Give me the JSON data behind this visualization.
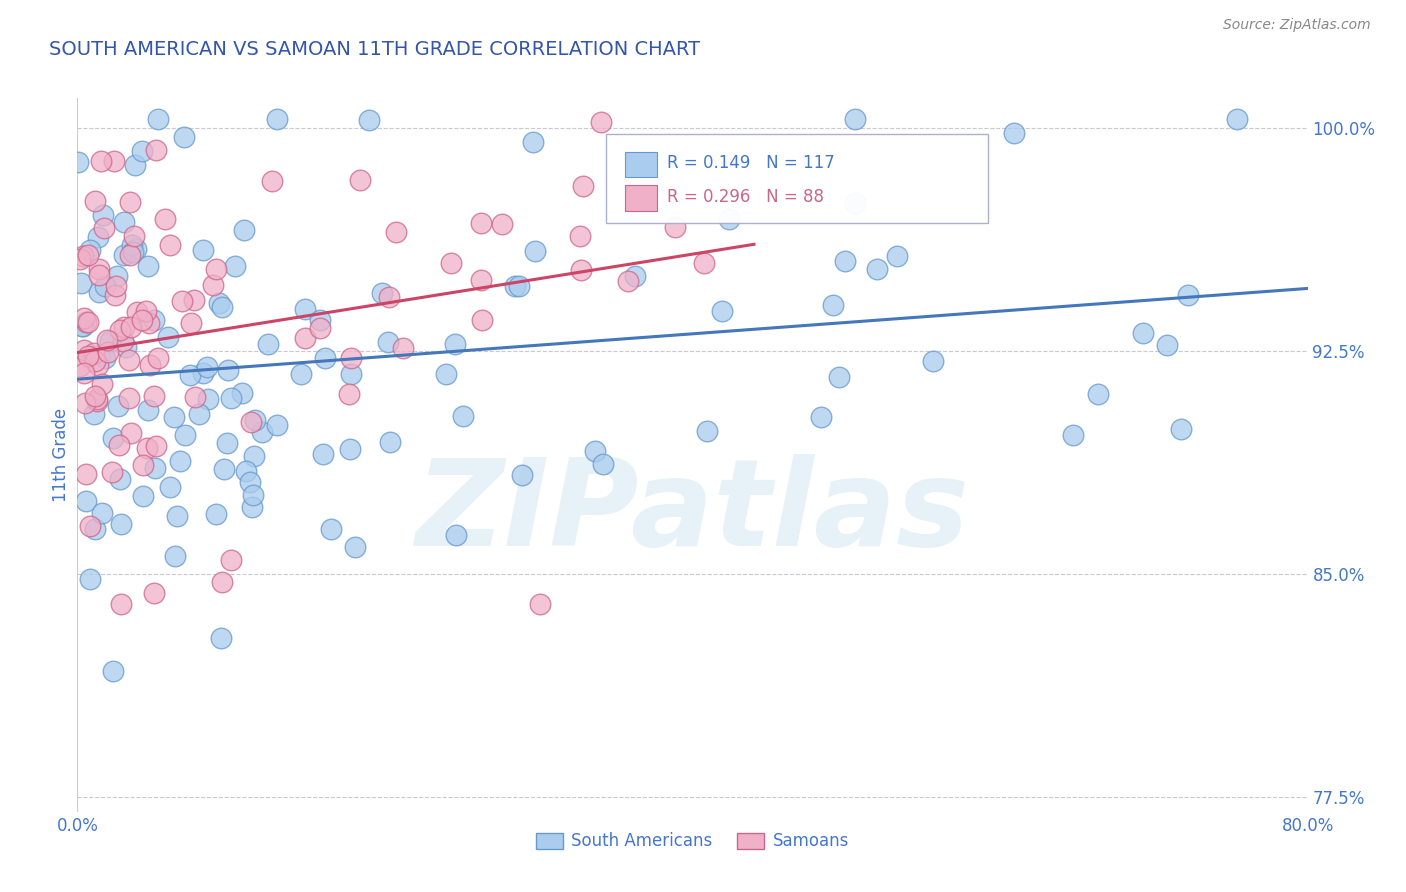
{
  "title": "SOUTH AMERICAN VS SAMOAN 11TH GRADE CORRELATION CHART",
  "source": "Source: ZipAtlas.com",
  "ylabel": "11th Grade",
  "xlim": [
    0.0,
    0.8
  ],
  "ylim": [
    0.77,
    1.01
  ],
  "series1_label": "South Americans",
  "series1_R": 0.149,
  "series1_N": 117,
  "series1_color": "#aaccee",
  "series1_edge": "#6699cc",
  "series2_label": "Samoans",
  "series2_R": 0.296,
  "series2_N": 88,
  "series2_color": "#f0b0c8",
  "series2_edge": "#cc6688",
  "trendline1_color": "#4477bb",
  "trendline2_color": "#cc4466",
  "watermark": "ZIPatlas",
  "grid_color": "#c8c8d8",
  "title_color": "#3355aa",
  "axis_color": "#4477cc",
  "ytick_positions": [
    0.775,
    0.8,
    0.825,
    0.85,
    0.875,
    0.9,
    0.925,
    0.95,
    0.975,
    1.0
  ],
  "ytick_labels": [
    "77.5%",
    "",
    "",
    "85.0%",
    "",
    "",
    "92.5%",
    "",
    "",
    "100.0%"
  ],
  "xtick_positions": [
    0.0,
    0.1,
    0.2,
    0.3,
    0.4,
    0.5,
    0.6,
    0.7,
    0.8
  ],
  "xtick_labels": [
    "0.0%",
    "",
    "",
    "",
    "",
    "",
    "",
    "",
    "80.0%"
  ],
  "background_color": "#ffffff",
  "legend_R1": "R = 0.149",
  "legend_N1": "N = 117",
  "legend_R2": "R = 0.296",
  "legend_N2": "N = 88"
}
